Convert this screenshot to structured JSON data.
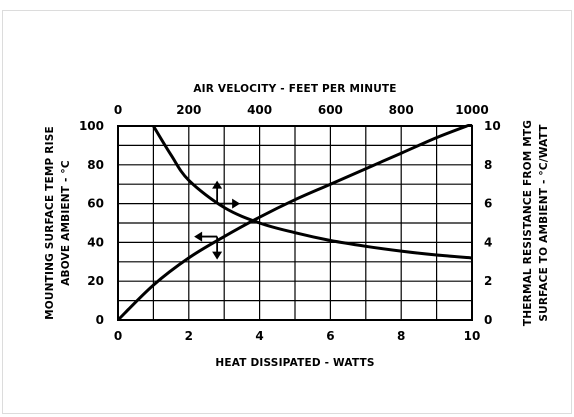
{
  "chart_data": {
    "type": "line",
    "top_axis_label": "AIR VELOCITY - FEET PER MINUTE",
    "top_ticks": [
      "0",
      "200",
      "400",
      "600",
      "800",
      "1000"
    ],
    "top_range": [
      0,
      1000
    ],
    "bottom_axis_label": "HEAT DISSIPATED - WATTS",
    "bottom_ticks": [
      "0",
      "2",
      "4",
      "6",
      "8",
      "10"
    ],
    "bottom_range": [
      0,
      10
    ],
    "left_axis_label_line1": "MOUNTING SURFACE TEMP RISE",
    "left_axis_label_line2": "ABOVE AMBIENT - °C",
    "left_ticks": [
      "0",
      "20",
      "40",
      "60",
      "80",
      "100"
    ],
    "left_range": [
      0,
      100
    ],
    "right_axis_label_line1": "THERMAL RESISTANCE FROM MTG",
    "right_axis_label_line2": "SURFACE TO AMBIENT - °C/WATT",
    "right_ticks": [
      "0",
      "2",
      "4",
      "6",
      "8",
      "10"
    ],
    "right_range": [
      0,
      10
    ],
    "grid": true,
    "series": [
      {
        "x_axis": "bottom",
        "y_axis": "left",
        "x": [
          0,
          1,
          2,
          3,
          4,
          5,
          6,
          7,
          8,
          9,
          10
        ],
        "y": [
          0,
          18,
          32,
          43,
          53,
          62,
          70,
          78,
          86,
          94,
          101
        ]
      },
      {
        "x_axis": "top",
        "y_axis": "right",
        "x": [
          100,
          150,
          200,
          300,
          400,
          500,
          600,
          700,
          800,
          900,
          1000
        ],
        "y": [
          10.0,
          8.5,
          7.2,
          5.8,
          5.0,
          4.5,
          4.1,
          3.8,
          3.55,
          3.35,
          3.2
        ]
      }
    ],
    "annotations": [
      {
        "type": "arrows",
        "near_x_bottom": 2.8,
        "near_y_left": 60,
        "directions": [
          "up",
          "right"
        ]
      },
      {
        "type": "arrows",
        "near_x_bottom": 2.8,
        "near_y_left": 43,
        "directions": [
          "left",
          "down"
        ]
      }
    ]
  }
}
